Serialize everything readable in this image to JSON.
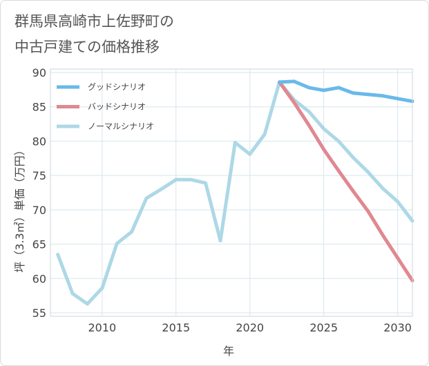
{
  "title_lines": [
    "群馬県高崎市上佐野町の",
    "中古戸建ての価格推移"
  ],
  "chart_data": {
    "type": "line",
    "xlabel": "年",
    "ylabel": "坪（3.3㎡）単価（万円）",
    "xlim": [
      2006.5,
      2031
    ],
    "ylim": [
      54.5,
      90.5
    ],
    "xticks": [
      2010,
      2015,
      2020,
      2025,
      2030
    ],
    "yticks": [
      55,
      60,
      65,
      70,
      75,
      80,
      85,
      90
    ],
    "grid": true,
    "legend_position": "top-left",
    "series": [
      {
        "name": "ノーマルシナリオ",
        "color": "#add8e6",
        "x": [
          2007,
          2008,
          2009,
          2010,
          2011,
          2012,
          2013,
          2014,
          2015,
          2016,
          2017,
          2018,
          2019,
          2020,
          2021,
          2022,
          2023,
          2024,
          2025,
          2026,
          2027,
          2028,
          2029,
          2030,
          2031
        ],
        "y": [
          63.5,
          57.8,
          56.3,
          58.6,
          65.1,
          66.8,
          71.7,
          73.0,
          74.4,
          74.4,
          73.9,
          65.5,
          79.8,
          78.1,
          81.0,
          88.6,
          86.0,
          84.3,
          81.8,
          80.0,
          77.6,
          75.5,
          73.1,
          71.2,
          68.4
        ]
      },
      {
        "name": "バッドシナリオ",
        "color": "#e08890",
        "x": [
          2022,
          2023,
          2024,
          2025,
          2026,
          2027,
          2028,
          2029,
          2030,
          2031
        ],
        "y": [
          88.6,
          85.6,
          82.3,
          78.8,
          75.7,
          72.7,
          69.8,
          66.3,
          63.0,
          59.7
        ]
      },
      {
        "name": "グッドシナリオ",
        "color": "#6ab9ea",
        "x": [
          2022,
          2023,
          2024,
          2025,
          2026,
          2027,
          2028,
          2029,
          2030,
          2031
        ],
        "y": [
          88.6,
          88.7,
          87.8,
          87.4,
          87.8,
          87.0,
          86.8,
          86.6,
          86.2,
          85.8
        ]
      }
    ],
    "legend": [
      {
        "label": "グッドシナリオ",
        "color": "#6ab9ea"
      },
      {
        "label": "バッドシナリオ",
        "color": "#e08890"
      },
      {
        "label": "ノーマルシナリオ",
        "color": "#add8e6"
      }
    ]
  }
}
